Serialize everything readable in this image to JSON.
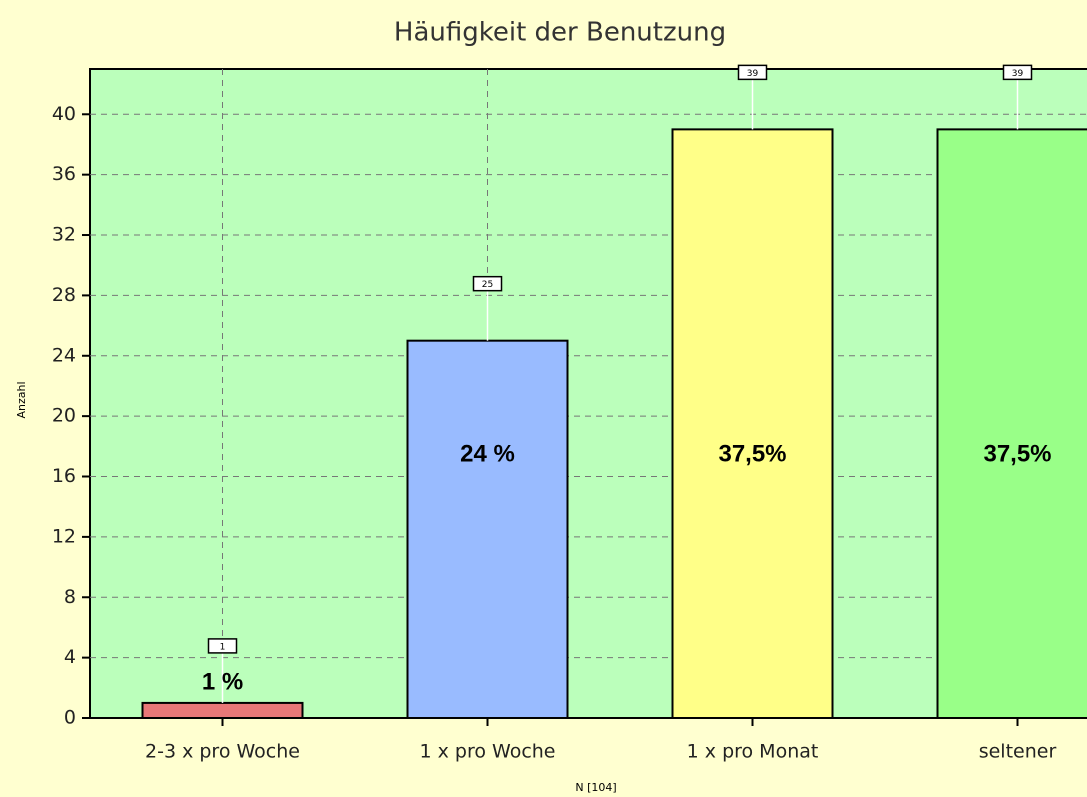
{
  "chart_data": {
    "type": "bar",
    "title": "Häufigkeit der Benutzung",
    "x_label": "N [104]",
    "y_label": "Anzahl",
    "categories": [
      "2-3 x pro Woche",
      "1 x pro Woche",
      "1 x pro Monat",
      "seltener"
    ],
    "values": [
      1,
      25,
      39,
      39
    ],
    "colors": [
      "#e87878",
      "#99bbff",
      "#ffff88",
      "#99ff88"
    ],
    "annotations": [
      "1 %",
      "24 %",
      "37,5%",
      "37,5%"
    ],
    "ylim": [
      0,
      43
    ],
    "yticks": [
      0,
      4,
      8,
      12,
      16,
      20,
      24,
      28,
      32,
      36,
      40
    ],
    "grid": true
  }
}
